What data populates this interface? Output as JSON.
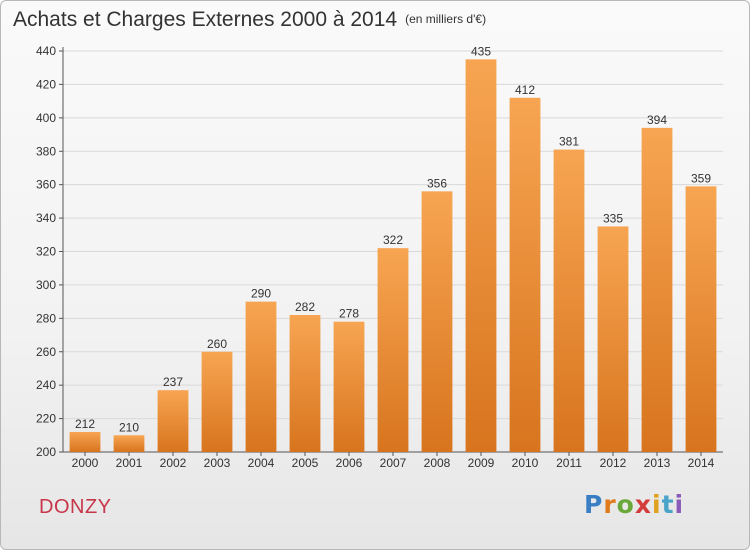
{
  "header": {
    "title": "Achats et Charges Externes 2000 à 2014",
    "unit": "(en milliers d'€)"
  },
  "footer": {
    "city": "DONZY",
    "logo_text": "Proxiti"
  },
  "colors": {
    "bar_light": "#f7a552",
    "bar_dark": "#d8741e",
    "city": "#c8364a",
    "axis": "#555555",
    "grid": "#d9d9d9"
  },
  "chart_data": {
    "type": "bar",
    "title": "Achats et Charges Externes 2000 à 2014",
    "subtitle": "(en milliers d'€)",
    "xlabel": "",
    "ylabel": "",
    "categories": [
      "2000",
      "2001",
      "2002",
      "2003",
      "2004",
      "2005",
      "2006",
      "2007",
      "2008",
      "2009",
      "2010",
      "2011",
      "2012",
      "2013",
      "2014"
    ],
    "values": [
      212,
      210,
      237,
      260,
      290,
      282,
      278,
      322,
      356,
      435,
      412,
      381,
      335,
      394,
      359
    ],
    "ylim": [
      200,
      440
    ],
    "yticks": [
      200,
      220,
      240,
      260,
      280,
      300,
      320,
      340,
      360,
      380,
      400,
      420,
      440
    ],
    "grid": true,
    "legend": "none"
  }
}
